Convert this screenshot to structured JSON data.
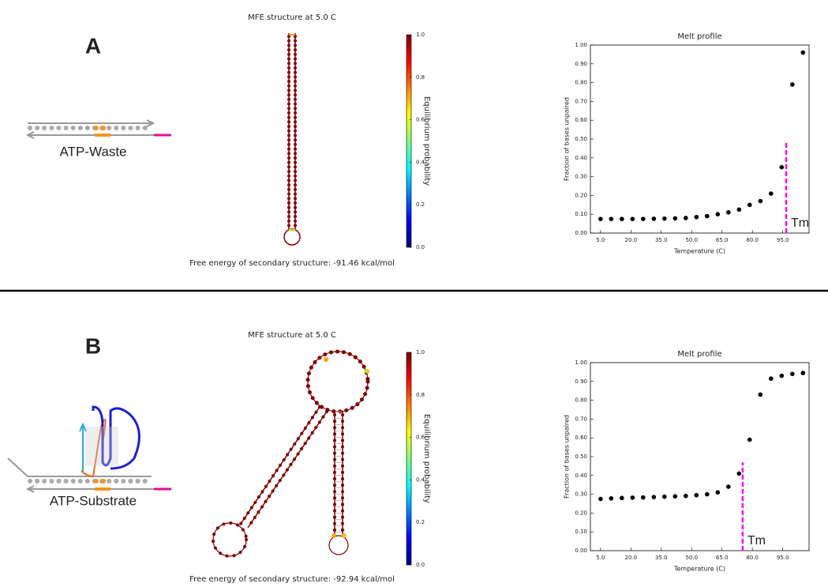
{
  "panels": [
    {
      "label": "A",
      "molecule": "ATP-Waste",
      "mfe_title": "MFE structure at 5.0 C",
      "free_energy": "Free energy of secondary structure: -91.46 kcal/mol",
      "colorbar": {
        "label": "Equilibrium probability",
        "lim": [
          0,
          1
        ],
        "ticks": [
          {
            "value": 0,
            "label": "0.0"
          },
          {
            "value": 0.2,
            "label": "0.2"
          },
          {
            "value": 0.4,
            "label": "0.4"
          },
          {
            "value": 0.6,
            "label": "0.6"
          },
          {
            "value": 0.8,
            "label": "0.8"
          },
          {
            "value": 1,
            "label": "1.0"
          }
        ]
      }
    },
    {
      "label": "B",
      "molecule": "ATP-Substrate",
      "mfe_title": "MFE structure at 5.0 C",
      "free_energy": "Free energy of secondary structure: -92.94 kcal/mol",
      "colorbar": {
        "label": "Equilibrium probability",
        "lim": [
          0,
          1
        ],
        "ticks": [
          {
            "value": 0,
            "label": "0.0"
          },
          {
            "value": 0.2,
            "label": "0.2"
          },
          {
            "value": 0.4,
            "label": "0.4"
          },
          {
            "value": 0.6,
            "label": "0.6"
          },
          {
            "value": 0.8,
            "label": "0.8"
          },
          {
            "value": 1,
            "label": "1.0"
          }
        ]
      }
    }
  ],
  "chart_data": [
    {
      "type": "scatter",
      "title": "Melt profile",
      "x_label": "Temperature (C)",
      "y_label": "Fraction of bases unpaired",
      "color": "#000000",
      "x": [
        5,
        10.26,
        15.53,
        20.79,
        26.05,
        31.32,
        36.58,
        41.84,
        47.11,
        52.37,
        57.63,
        62.89,
        68.16,
        73.42,
        78.68,
        83.95,
        89.21,
        94.47,
        99.74,
        105
      ],
      "values": [
        0.075,
        0.075,
        0.075,
        0.075,
        0.075,
        0.076,
        0.077,
        0.078,
        0.08,
        0.085,
        0.09,
        0.1,
        0.11,
        0.125,
        0.15,
        0.17,
        0.21,
        0.35,
        0.79,
        0.96
      ],
      "xlim": [
        0,
        108
      ],
      "ylim": [
        0,
        1
      ],
      "xticks": [
        {
          "value": 5,
          "label": "5.0"
        },
        {
          "value": 20,
          "label": "20.0"
        },
        {
          "value": 35,
          "label": "35.0"
        },
        {
          "value": 50,
          "label": "50.0"
        },
        {
          "value": 65,
          "label": "65.0"
        },
        {
          "value": 80,
          "label": "80.0"
        },
        {
          "value": 95,
          "label": "95.0"
        }
      ],
      "yticks": [
        {
          "value": 0,
          "label": "0.00"
        },
        {
          "value": 0.1,
          "label": "0.10"
        },
        {
          "value": 0.2,
          "label": "0.20"
        },
        {
          "value": 0.3,
          "label": "0.30"
        },
        {
          "value": 0.4,
          "label": "0.40"
        },
        {
          "value": 0.5,
          "label": "0.50"
        },
        {
          "value": 0.6,
          "label": "0.60"
        },
        {
          "value": 0.7,
          "label": "0.70"
        },
        {
          "value": 0.8,
          "label": "0.80"
        },
        {
          "value": 0.9,
          "label": "0.90"
        },
        {
          "value": 1,
          "label": "1.00"
        }
      ],
      "annotations": [
        {
          "text": "Tm",
          "x": 96.7,
          "y": 0.48,
          "color": "#ff00ff"
        }
      ]
    },
    {
      "type": "scatter",
      "title": "Melt profile",
      "x_label": "Temperature (C)",
      "y_label": "Fraction of bases unpaired",
      "color": "#000000",
      "x": [
        5,
        10.26,
        15.53,
        20.79,
        26.05,
        31.32,
        36.58,
        41.84,
        47.11,
        52.37,
        57.63,
        62.89,
        68.16,
        73.42,
        78.68,
        83.95,
        89.21,
        94.47,
        99.74,
        105
      ],
      "values": [
        0.275,
        0.278,
        0.28,
        0.282,
        0.283,
        0.285,
        0.287,
        0.289,
        0.291,
        0.295,
        0.3,
        0.31,
        0.34,
        0.41,
        0.59,
        0.83,
        0.915,
        0.93,
        0.94,
        0.945
      ],
      "xlim": [
        0,
        108
      ],
      "ylim": [
        0,
        1
      ],
      "xticks": [
        {
          "value": 5,
          "label": "5.0"
        },
        {
          "value": 20,
          "label": "20.0"
        },
        {
          "value": 35,
          "label": "35.0"
        },
        {
          "value": 50,
          "label": "50.0"
        },
        {
          "value": 65,
          "label": "65.0"
        },
        {
          "value": 80,
          "label": "80.0"
        },
        {
          "value": 95,
          "label": "95.0"
        }
      ],
      "yticks": [
        {
          "value": 0,
          "label": "0.00"
        },
        {
          "value": 0.1,
          "label": "0.10"
        },
        {
          "value": 0.2,
          "label": "0.20"
        },
        {
          "value": 0.3,
          "label": "0.30"
        },
        {
          "value": 0.4,
          "label": "0.40"
        },
        {
          "value": 0.5,
          "label": "0.50"
        },
        {
          "value": 0.6,
          "label": "0.60"
        },
        {
          "value": 0.7,
          "label": "0.70"
        },
        {
          "value": 0.8,
          "label": "0.80"
        },
        {
          "value": 0.9,
          "label": "0.90"
        },
        {
          "value": 1,
          "label": "1.00"
        }
      ],
      "annotations": [
        {
          "text": "Tm",
          "x": 75.2,
          "y": 0.47,
          "color": "#ff00ff"
        }
      ]
    }
  ]
}
